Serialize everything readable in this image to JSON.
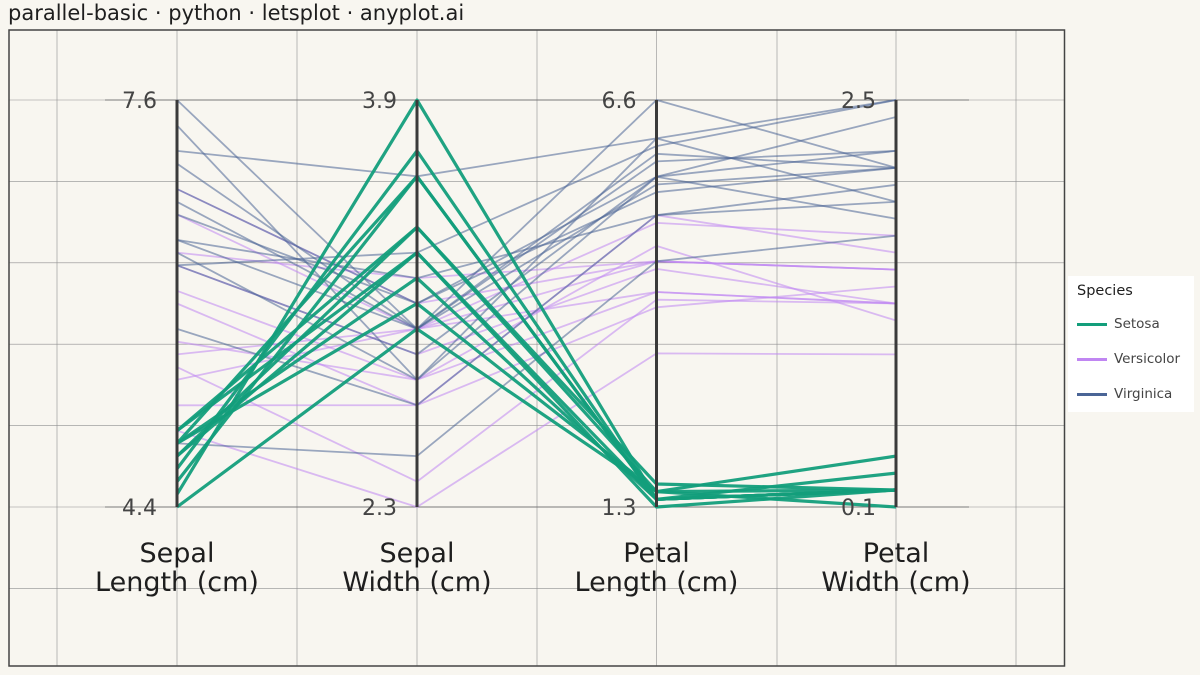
{
  "page": {
    "title": "parallel-basic · python · letsplot · anyplot.ai"
  },
  "chart_data": {
    "type": "parallel",
    "axes": [
      {
        "label_lines": [
          "Sepal",
          "Length (cm)"
        ],
        "min": 4.4,
        "max": 7.6,
        "min_label": "4.4",
        "max_label": "7.6"
      },
      {
        "label_lines": [
          "Sepal",
          "Width (cm)"
        ],
        "min": 2.3,
        "max": 3.9,
        "min_label": "2.3",
        "max_label": "3.9"
      },
      {
        "label_lines": [
          "Petal",
          "Length (cm)"
        ],
        "min": 1.3,
        "max": 6.6,
        "min_label": "1.3",
        "max_label": "6.6"
      },
      {
        "label_lines": [
          "Petal",
          "Width (cm)"
        ],
        "min": 0.1,
        "max": 2.5,
        "min_label": "0.1",
        "max_label": "2.5"
      }
    ],
    "legend": {
      "title": "Species",
      "position": "right",
      "entries": [
        {
          "name": "Setosa",
          "color": "#139E7B"
        },
        {
          "name": "Versicolor",
          "color": "#C086F2"
        },
        {
          "name": "Virginica",
          "color": "#4A6596"
        }
      ]
    },
    "grid": true,
    "series": [
      {
        "name": "Setosa",
        "color": "#139E7B",
        "rows": [
          [
            5.0,
            3.3,
            1.4,
            0.2
          ],
          [
            4.8,
            3.4,
            1.6,
            0.2
          ],
          [
            4.9,
            3.1,
            1.5,
            0.1
          ],
          [
            5.0,
            3.4,
            1.5,
            0.2
          ],
          [
            4.6,
            3.6,
            1.4,
            0.2
          ],
          [
            4.9,
            3.2,
            1.4,
            0.3
          ],
          [
            4.8,
            3.3,
            1.3,
            0.2
          ],
          [
            4.5,
            3.9,
            1.4,
            0.2
          ],
          [
            4.4,
            3.0,
            1.5,
            0.4
          ],
          [
            4.7,
            3.7,
            1.4,
            0.2
          ],
          [
            4.9,
            3.6,
            1.4,
            0.2
          ]
        ]
      },
      {
        "name": "Versicolor",
        "color": "#C086F2",
        "rows": [
          [
            5.7,
            2.8,
            4.1,
            1.3
          ],
          [
            5.2,
            2.7,
            3.9,
            1.4
          ],
          [
            6.3,
            2.9,
            4.4,
            1.3
          ],
          [
            6.7,
            3.0,
            5.0,
            1.7
          ],
          [
            5.5,
            2.4,
            4.0,
            1.3
          ],
          [
            6.1,
            2.8,
            4.7,
            1.2
          ],
          [
            6.9,
            3.1,
            4.5,
            1.5
          ],
          [
            5.0,
            2.3,
            3.3,
            1.0
          ],
          [
            5.6,
            3.0,
            4.1,
            1.3
          ],
          [
            6.4,
            3.2,
            4.5,
            1.5
          ],
          [
            5.4,
            3.0,
            4.5,
            1.5
          ],
          [
            6.0,
            2.7,
            5.1,
            1.6
          ]
        ]
      },
      {
        "name": "Virginica",
        "color": "#4A6596",
        "rows": [
          [
            6.3,
            3.3,
            6.0,
            2.5
          ],
          [
            5.8,
            2.7,
            5.1,
            1.9
          ],
          [
            7.1,
            3.0,
            5.9,
            2.1
          ],
          [
            7.6,
            3.0,
            6.6,
            2.1
          ],
          [
            4.9,
            2.5,
            4.5,
            1.7
          ],
          [
            6.5,
            3.2,
            5.1,
            2.0
          ],
          [
            7.2,
            3.6,
            6.1,
            2.5
          ],
          [
            6.5,
            3.0,
            5.8,
            2.2
          ],
          [
            6.3,
            2.9,
            5.6,
            1.8
          ],
          [
            6.8,
            3.0,
            5.5,
            2.1
          ],
          [
            6.4,
            2.8,
            5.6,
            2.2
          ],
          [
            7.4,
            2.8,
            6.1,
            1.9
          ],
          [
            6.7,
            3.1,
            5.6,
            2.4
          ],
          [
            6.9,
            3.1,
            5.4,
            2.1
          ]
        ]
      }
    ]
  }
}
